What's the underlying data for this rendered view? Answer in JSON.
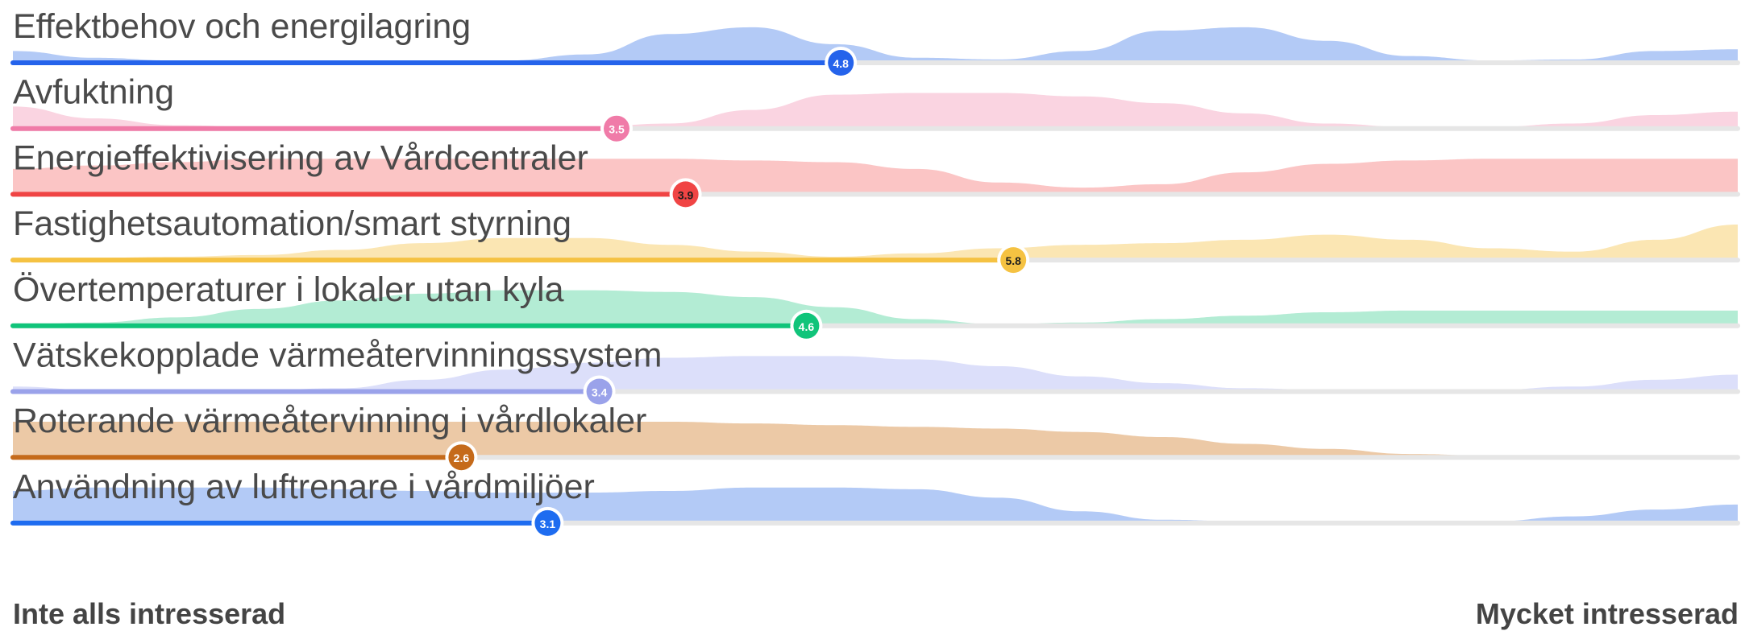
{
  "chart_data": {
    "type": "ranking-distribution",
    "scale": {
      "min": 0,
      "max": 10
    },
    "axis_labels": {
      "min": "Inte alls intresserad",
      "max": "Mycket intresserad"
    },
    "rows": [
      {
        "label": "Effektbehov och energilagring",
        "score": 4.8,
        "score_label": "4.8",
        "color": "#2563eb",
        "fill": "#b3caf6",
        "dark_text": false,
        "distribution": [
          0.3,
          0.1,
          0.02,
          0.0,
          0.0,
          0.0,
          0.02,
          0.2,
          0.8,
          1.0,
          0.5,
          0.1,
          0.05,
          0.3,
          0.9,
          1.0,
          0.6,
          0.15,
          0.02,
          0.05,
          0.3,
          0.35
        ]
      },
      {
        "label": "Avfuktning",
        "score": 3.5,
        "score_label": "3.5",
        "color": "#f07ba8",
        "fill": "#fad4e1",
        "dark_text": false,
        "distribution": [
          0.6,
          0.25,
          0.05,
          0.0,
          0.0,
          0.0,
          0.0,
          0.0,
          0.1,
          0.5,
          0.95,
          1.0,
          1.0,
          0.9,
          0.7,
          0.4,
          0.1,
          0.0,
          0.0,
          0.1,
          0.35,
          0.45
        ]
      },
      {
        "label": "Energieffektivisering av Vårdcentraler",
        "score": 3.9,
        "score_label": "3.9",
        "color": "#f04444",
        "fill": "#fbc5c5",
        "dark_text": true,
        "distribution": [
          0.7,
          0.8,
          0.9,
          1.0,
          1.0,
          1.0,
          1.0,
          1.0,
          1.0,
          0.95,
          0.9,
          0.7,
          0.3,
          0.15,
          0.25,
          0.6,
          0.85,
          0.95,
          1.0,
          1.0,
          1.0,
          1.0
        ]
      },
      {
        "label": "Fastighetsautomation/smart styrning",
        "score": 5.8,
        "score_label": "5.8",
        "color": "#f5c242",
        "fill": "#fbe6b3",
        "dark_text": true,
        "distribution": [
          0.0,
          0.02,
          0.05,
          0.1,
          0.25,
          0.45,
          0.6,
          0.6,
          0.4,
          0.2,
          0.05,
          0.15,
          0.3,
          0.4,
          0.45,
          0.55,
          0.7,
          0.55,
          0.3,
          0.2,
          0.55,
          1.0
        ]
      },
      {
        "label": "Övertemperaturer i lokaler utan kyla",
        "score": 4.6,
        "score_label": "4.6",
        "color": "#10c47a",
        "fill": "#b3ecd4",
        "dark_text": false,
        "distribution": [
          0.0,
          0.05,
          0.2,
          0.45,
          0.7,
          0.9,
          1.0,
          1.0,
          0.95,
          0.8,
          0.5,
          0.15,
          0.0,
          0.05,
          0.15,
          0.25,
          0.35,
          0.4,
          0.4,
          0.4,
          0.4,
          0.4
        ]
      },
      {
        "label": "Vätskekopplade värmeåtervinningssystem",
        "score": 3.4,
        "score_label": "3.4",
        "color": "#9aa2ea",
        "fill": "#dcdffa",
        "dark_text": false,
        "distribution": [
          0.1,
          0.0,
          0.0,
          0.0,
          0.05,
          0.3,
          0.6,
          0.8,
          0.95,
          1.0,
          1.0,
          0.9,
          0.7,
          0.4,
          0.2,
          0.05,
          0.0,
          0.0,
          0.0,
          0.1,
          0.3,
          0.45
        ]
      },
      {
        "label": "Roterande värmeåtervinning i vårdlokaler",
        "score": 2.6,
        "score_label": "2.6",
        "color": "#c56a1a",
        "fill": "#ecc9a6",
        "dark_text": false,
        "distribution": [
          1.0,
          1.0,
          1.0,
          1.0,
          1.0,
          1.0,
          1.0,
          1.0,
          1.0,
          0.95,
          0.9,
          0.85,
          0.8,
          0.7,
          0.55,
          0.35,
          0.2,
          0.05,
          0.0,
          0.0,
          0.0,
          0.0
        ]
      },
      {
        "label": "Användning av luftrenare i vårdmiljöer",
        "score": 3.1,
        "score_label": "3.1",
        "color": "#1e6cf0",
        "fill": "#b3caf6",
        "dark_text": false,
        "distribution": [
          0.9,
          1.0,
          1.0,
          1.0,
          0.95,
          0.9,
          0.85,
          0.85,
          0.9,
          1.0,
          1.0,
          0.95,
          0.7,
          0.3,
          0.05,
          0.0,
          0.0,
          0.0,
          0.0,
          0.15,
          0.35,
          0.5
        ]
      }
    ]
  }
}
